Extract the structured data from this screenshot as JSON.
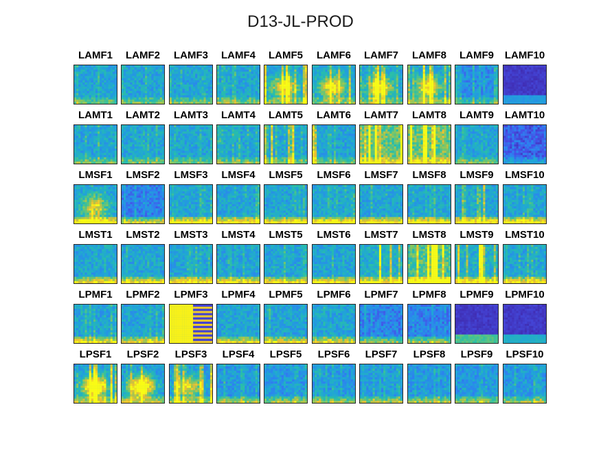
{
  "title": "D13-JL-PROD",
  "chart_data": {
    "type": "heatmap",
    "title": "D13-JL-PROD",
    "layout": "6x10 grid of small heatmap panels",
    "colormap": "parula",
    "colors": {
      "low": "#3e26a8",
      "mid": "#2b9fd6",
      "high": "#f9fb15"
    },
    "ticks": "none",
    "panels": [
      [
        "LAMF1",
        "LAMF2",
        "LAMF3",
        "LAMF4",
        "LAMF5",
        "LAMF6",
        "LAMF7",
        "LAMF8",
        "LAMF9",
        "LAMF10"
      ],
      [
        "LAMT1",
        "LAMT2",
        "LAMT3",
        "LAMT4",
        "LAMT5",
        "LAMT6",
        "LAMT7",
        "LAMT8",
        "LAMT9",
        "LAMT10"
      ],
      [
        "LMSF1",
        "LMSF2",
        "LMSF3",
        "LMSF4",
        "LMSF5",
        "LMSF6",
        "LMSF7",
        "LMSF8",
        "LMSF9",
        "LMSF10"
      ],
      [
        "LMST1",
        "LMST2",
        "LMST3",
        "LMST4",
        "LMST5",
        "LMST6",
        "LMST7",
        "LMST8",
        "LMST9",
        "LMST10"
      ],
      [
        "LPMF1",
        "LPMF2",
        "LPMF3",
        "LPMF4",
        "LPMF5",
        "LPMF6",
        "LPMF7",
        "LPMF8",
        "LPMF9",
        "LPMF10"
      ],
      [
        "LPSF1",
        "LPSF2",
        "LPSF3",
        "LPSF4",
        "LPSF5",
        "LPSF6",
        "LPSF7",
        "LPSF8",
        "LPSF9",
        "LPSF10"
      ]
    ]
  }
}
